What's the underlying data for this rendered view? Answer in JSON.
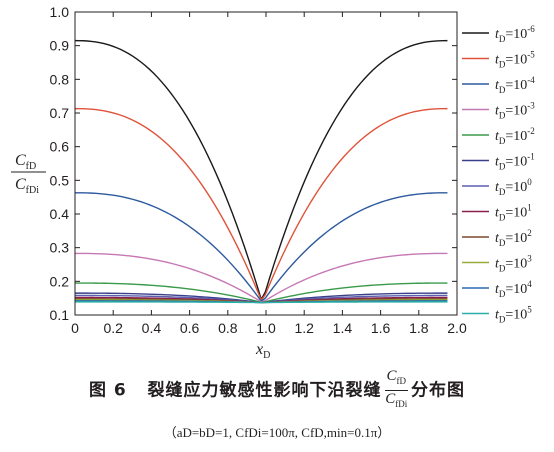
{
  "chart_data": {
    "type": "line",
    "xlabel_var": "x",
    "xlabel_sub": "D",
    "ylabel_num_var": "C",
    "ylabel_num_sub": "fD",
    "ylabel_den_var": "C",
    "ylabel_den_sub": "fDi",
    "xlim": [
      0,
      2.0
    ],
    "ylim": [
      0.1,
      1.0
    ],
    "xticks": [
      "0",
      "0.2",
      "0.4",
      "0.6",
      "0.8",
      "1.0",
      "1.2",
      "1.4",
      "1.6",
      "1.8",
      "2.0"
    ],
    "yticks": [
      "0.1",
      "0.2",
      "0.3",
      "0.4",
      "0.5",
      "0.6",
      "0.7",
      "0.8",
      "0.9",
      "1.0"
    ],
    "x_range": [
      0,
      1.95
    ],
    "center_x": 0.98,
    "center_y": 0.137,
    "legend_position": "right",
    "series": [
      {
        "name_var": "t",
        "name_sub": "D",
        "name_base": "=10",
        "name_exp": "-6",
        "color": "#1a1a1a",
        "edge_value": 0.915
      },
      {
        "name_var": "t",
        "name_sub": "D",
        "name_base": "=10",
        "name_exp": "-5",
        "color": "#e0533a",
        "edge_value": 0.713
      },
      {
        "name_var": "t",
        "name_sub": "D",
        "name_base": "=10",
        "name_exp": "-4",
        "color": "#2e5a9e",
        "edge_value": 0.463
      },
      {
        "name_var": "t",
        "name_sub": "D",
        "name_base": "=10",
        "name_exp": "-3",
        "color": "#c678b4",
        "edge_value": 0.283
      },
      {
        "name_var": "t",
        "name_sub": "D",
        "name_base": "=10",
        "name_exp": "-2",
        "color": "#3a9a4a",
        "edge_value": 0.195
      },
      {
        "name_var": "t",
        "name_sub": "D",
        "name_base": "=10",
        "name_exp": "-1",
        "color": "#3a3f8a",
        "edge_value": 0.165
      },
      {
        "name_var": "t",
        "name_sub": "D",
        "name_base": "=10",
        "name_exp": "0",
        "color": "#5a5fb0",
        "edge_value": 0.158
      },
      {
        "name_var": "t",
        "name_sub": "D",
        "name_base": "=10",
        "name_exp": "1",
        "color": "#8a1e4e",
        "edge_value": 0.152
      },
      {
        "name_var": "t",
        "name_sub": "D",
        "name_base": "=10",
        "name_exp": "2",
        "color": "#7a4a2a",
        "edge_value": 0.148
      },
      {
        "name_var": "t",
        "name_sub": "D",
        "name_base": "=10",
        "name_exp": "3",
        "color": "#9aaa3a",
        "edge_value": 0.145
      },
      {
        "name_var": "t",
        "name_sub": "D",
        "name_base": "=10",
        "name_exp": "4",
        "color": "#2a6ab0",
        "edge_value": 0.142
      },
      {
        "name_var": "t",
        "name_sub": "D",
        "name_base": "=10",
        "name_exp": "5",
        "color": "#2ab0a8",
        "edge_value": 0.139
      }
    ]
  },
  "caption": {
    "fig_label": "图 6",
    "title_text": "裂缝应力敏感性影响下沿裂缝",
    "frac_num_var": "C",
    "frac_num_sub": "fD",
    "frac_den_var": "C",
    "frac_den_sub": "fDi",
    "title_suffix": "分布图",
    "params": "（aD=bD=1, CfDi=100π, CfD,min=0.1π）"
  }
}
